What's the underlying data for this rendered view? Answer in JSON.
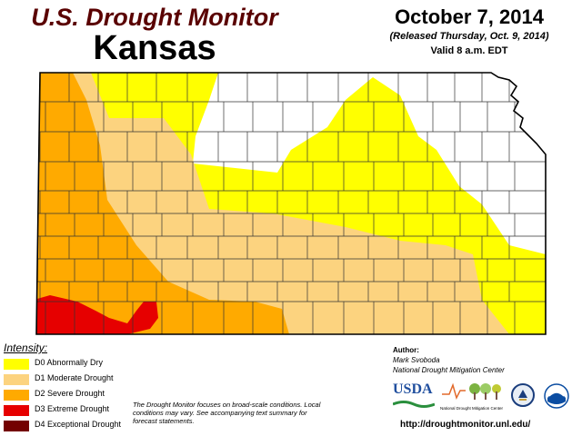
{
  "header": {
    "title": "U.S. Drought Monitor",
    "state": "Kansas",
    "date": "October 7, 2014",
    "released": "(Released Thursday, Oct. 9, 2014)",
    "valid": "Valid 8 a.m. EDT"
  },
  "legend": {
    "title": "Intensity:",
    "items": [
      {
        "label": "D0 Abnormally Dry",
        "color": "#ffff00"
      },
      {
        "label": "D1 Moderate Drought",
        "color": "#fcd37f"
      },
      {
        "label": "D2 Severe Drought",
        "color": "#ffaa00"
      },
      {
        "label": "D3 Extreme Drought",
        "color": "#e60000"
      },
      {
        "label": "D4 Exceptional Drought",
        "color": "#730000"
      }
    ]
  },
  "note": "The Drought Monitor focuses on broad-scale conditions. Local conditions may vary. See accompanying text summary for forecast statements.",
  "author": {
    "label": "Author:",
    "name": "Mark Svoboda",
    "org": "National Drought Mitigation Center"
  },
  "logos": {
    "usda": "USDA",
    "ndmc": "National Drought Mitigation Center"
  },
  "url": "http://droughtmonitor.unl.edu/",
  "colors": {
    "border": "#000000",
    "county_line": "#333333",
    "none": "#ffffff"
  }
}
